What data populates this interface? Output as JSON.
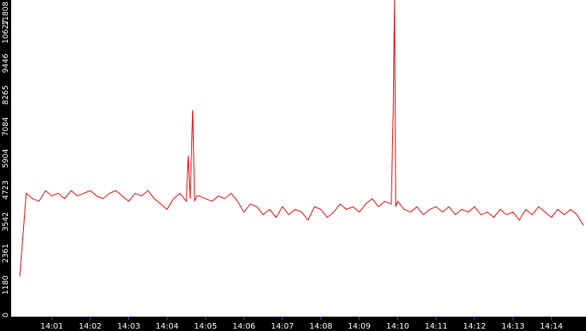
{
  "chart_data": {
    "type": "line",
    "title": "",
    "xlabel": "",
    "ylabel": "",
    "ylim": [
      0,
      11808
    ],
    "y_ticks": [
      "0",
      "1180",
      "2361",
      "3542",
      "4723",
      "5904",
      "7084",
      "8265",
      "9446",
      "10627",
      "11808"
    ],
    "x_ticks": [
      "14:01",
      "14:02",
      "14:03",
      "14:04",
      "14:05",
      "14:06",
      "14:07",
      "14:08",
      "14:09",
      "14:10",
      "14:11",
      "14:12",
      "14:13",
      "14:14"
    ],
    "grid": false,
    "series_color": "#e00000",
    "axis_background": "#000000",
    "series": [
      {
        "x": [
          "14:00:10",
          "14:00:20",
          "14:00:30",
          "14:00:40",
          "14:00:50",
          "14:01:00",
          "14:01:10",
          "14:01:20",
          "14:01:30",
          "14:01:40",
          "14:01:50",
          "14:02:00",
          "14:02:10",
          "14:02:20",
          "14:02:30",
          "14:02:40",
          "14:02:50",
          "14:03:00",
          "14:03:10",
          "14:03:20",
          "14:03:30",
          "14:03:40",
          "14:03:50",
          "14:04:00",
          "14:04:10",
          "14:04:20",
          "14:04:30",
          "14:04:33",
          "14:04:36",
          "14:04:40",
          "14:04:43",
          "14:04:46",
          "14:04:50",
          "14:05:00",
          "14:05:10",
          "14:05:20",
          "14:05:30",
          "14:05:40",
          "14:05:50",
          "14:06:00",
          "14:06:10",
          "14:06:20",
          "14:06:30",
          "14:06:40",
          "14:06:50",
          "14:07:00",
          "14:07:10",
          "14:07:20",
          "14:07:30",
          "14:07:40",
          "14:07:50",
          "14:08:00",
          "14:08:10",
          "14:08:20",
          "14:08:30",
          "14:08:40",
          "14:08:50",
          "14:09:00",
          "14:09:10",
          "14:09:20",
          "14:09:30",
          "14:09:40",
          "14:09:50",
          "14:09:53",
          "14:09:55",
          "14:09:57",
          "14:10:00",
          "14:10:10",
          "14:10:20",
          "14:10:30",
          "14:10:40",
          "14:10:50",
          "14:11:00",
          "14:11:10",
          "14:11:20",
          "14:11:30",
          "14:11:40",
          "14:11:50",
          "14:12:00",
          "14:12:10",
          "14:12:20",
          "14:12:30",
          "14:12:40",
          "14:12:50",
          "14:13:00",
          "14:13:10",
          "14:13:20",
          "14:13:30",
          "14:13:40",
          "14:13:50",
          "14:14:00",
          "14:14:10",
          "14:14:20",
          "14:14:30",
          "14:14:40",
          "14:14:50"
        ],
        "y": [
          1500,
          4600,
          4400,
          4300,
          4700,
          4500,
          4600,
          4400,
          4700,
          4500,
          4600,
          4700,
          4500,
          4400,
          4600,
          4700,
          4500,
          4300,
          4600,
          4500,
          4700,
          4400,
          4200,
          4000,
          4400,
          4600,
          4300,
          6000,
          4400,
          7700,
          4300,
          4500,
          4500,
          4400,
          4300,
          4500,
          4400,
          4600,
          4300,
          3900,
          4200,
          4100,
          3800,
          4000,
          3700,
          4100,
          3800,
          4000,
          3900,
          3600,
          4100,
          4000,
          3700,
          3900,
          4200,
          4000,
          4100,
          3900,
          4200,
          4400,
          4100,
          4300,
          4200,
          7700,
          11808,
          4100,
          4300,
          4000,
          3900,
          4100,
          3800,
          4000,
          4100,
          3900,
          4100,
          3800,
          4000,
          3900,
          4100,
          3800,
          3900,
          3700,
          4000,
          3800,
          3900,
          3600,
          4000,
          3800,
          4100,
          3900,
          3700,
          4000,
          3800,
          4000,
          3800,
          3400
        ]
      }
    ]
  }
}
